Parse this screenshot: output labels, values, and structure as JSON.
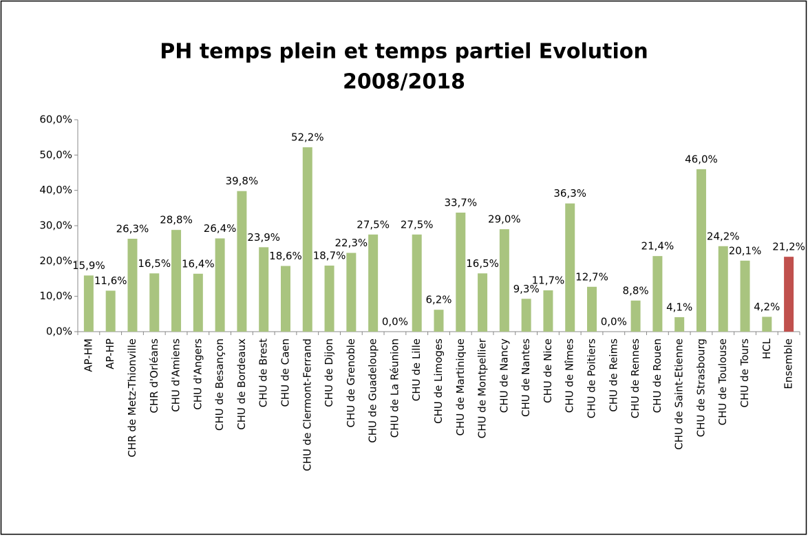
{
  "chart_data": {
    "type": "bar",
    "title": [
      "PH temps plein et temps partiel Evolution",
      "2008/2018"
    ],
    "categories": [
      "AP-HM",
      "AP-HP",
      "CHR de Metz-Thionville",
      "CHR d'Orléans",
      "CHU d'Amiens",
      "CHU d'Angers",
      "CHU de Besançon",
      "CHU de Bordeaux",
      "CHU de Brest",
      "CHU de Caen",
      "CHU de Clermont-Ferrand",
      "CHU de Dijon",
      "CHU de Grenoble",
      "CHU de Guadeloupe",
      "CHU de La Réunion",
      "CHU de Lille",
      "CHU de Limoges",
      "CHU de Martinique",
      "CHU de Montpellier",
      "CHU de Nancy",
      "CHU de Nantes",
      "CHU de Nice",
      "CHU de Nîmes",
      "CHU de Poitiers",
      "CHU de Reims",
      "CHU de Rennes",
      "CHU de Rouen",
      "CHU de Saint-Etienne",
      "CHU de Strasbourg",
      "CHU de Toulouse",
      "CHU de Tours",
      "HCL",
      "Ensemble"
    ],
    "values": [
      15.9,
      11.6,
      26.3,
      16.5,
      28.8,
      16.4,
      26.4,
      39.8,
      23.9,
      18.6,
      52.2,
      18.7,
      22.3,
      27.5,
      0.0,
      27.5,
      6.2,
      33.7,
      16.5,
      29.0,
      9.3,
      11.7,
      36.3,
      12.7,
      0.0,
      8.8,
      21.4,
      4.1,
      46.0,
      24.2,
      20.1,
      4.2,
      21.2
    ],
    "value_labels": [
      "15,9%",
      "11,6%",
      "26,3%",
      "16,5%",
      "28,8%",
      "16,4%",
      "26,4%",
      "39,8%",
      "23,9%",
      "18,6%",
      "52,2%",
      "18,7%",
      "22,3%",
      "27,5%",
      "0,0%",
      "27,5%",
      "6,2%",
      "33,7%",
      "16,5%",
      "29,0%",
      "9,3%",
      "11,7%",
      "36,3%",
      "12,7%",
      "0,0%",
      "8,8%",
      "21,4%",
      "4,1%",
      "46,0%",
      "24,2%",
      "20,1%",
      "4,2%",
      "21,2%"
    ],
    "colors": [
      "#a9c47f",
      "#a9c47f",
      "#a9c47f",
      "#a9c47f",
      "#a9c47f",
      "#a9c47f",
      "#a9c47f",
      "#a9c47f",
      "#a9c47f",
      "#a9c47f",
      "#a9c47f",
      "#a9c47f",
      "#a9c47f",
      "#a9c47f",
      "#a9c47f",
      "#a9c47f",
      "#a9c47f",
      "#a9c47f",
      "#a9c47f",
      "#a9c47f",
      "#a9c47f",
      "#a9c47f",
      "#a9c47f",
      "#a9c47f",
      "#a9c47f",
      "#a9c47f",
      "#a9c47f",
      "#a9c47f",
      "#a9c47f",
      "#a9c47f",
      "#a9c47f",
      "#a9c47f",
      "#c0504d"
    ],
    "ylim": [
      0,
      60
    ],
    "yticks": [
      {
        "value": 0,
        "label": "0,0%"
      },
      {
        "value": 10,
        "label": "10,0%"
      },
      {
        "value": 20,
        "label": "20,0%"
      },
      {
        "value": 30,
        "label": "30,0%"
      },
      {
        "value": 40,
        "label": "40,0%"
      },
      {
        "value": 50,
        "label": "50,0%"
      },
      {
        "value": 60,
        "label": "60,0%"
      }
    ],
    "grid": false
  }
}
